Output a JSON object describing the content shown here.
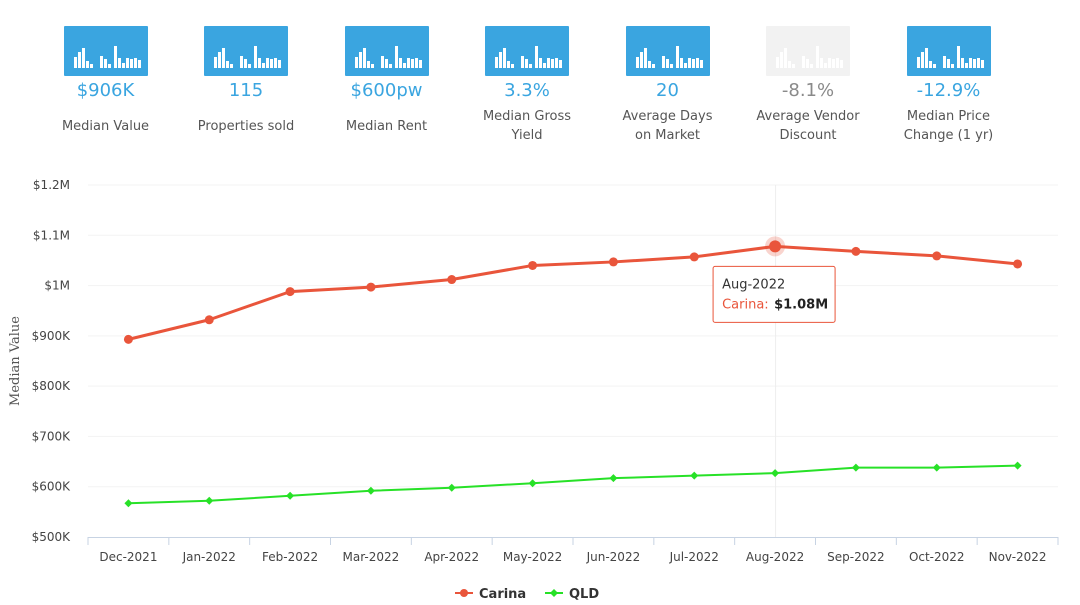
{
  "stats": [
    {
      "value": "$906K",
      "label": "Median Value",
      "muted": false
    },
    {
      "value": "115",
      "label": "Properties sold",
      "muted": false
    },
    {
      "value": "$600pw",
      "label": "Median Rent",
      "muted": false
    },
    {
      "value": "3.3%",
      "label": "Median Gross Yield",
      "muted": false
    },
    {
      "value": "20",
      "label": "Average Days on Market",
      "muted": false
    },
    {
      "value": "-8.1%",
      "label": "Average Vendor Discount",
      "muted": true
    },
    {
      "value": "-12.9%",
      "label": "Median Price Change (1 yr)",
      "muted": false
    }
  ],
  "colors": {
    "accent": "#3aa5e0",
    "carina": "#e9553b",
    "qld": "#27e127"
  },
  "chart_data": {
    "type": "line",
    "title": "",
    "xlabel": "",
    "ylabel": "Median Value",
    "categories": [
      "Dec-2021",
      "Jan-2022",
      "Feb-2022",
      "Mar-2022",
      "Apr-2022",
      "May-2022",
      "Jun-2022",
      "Jul-2022",
      "Aug-2022",
      "Sep-2022",
      "Oct-2022",
      "Nov-2022"
    ],
    "ylim": [
      500000,
      1200000
    ],
    "y_ticks": [
      500000,
      600000,
      700000,
      800000,
      900000,
      1000000,
      1100000,
      1200000
    ],
    "y_tick_labels": [
      "$500K",
      "$600K",
      "$700K",
      "$800K",
      "$900K",
      "$1M",
      "$1.1M",
      "$1.2M"
    ],
    "series": [
      {
        "name": "Carina",
        "values": [
          893000,
          932000,
          988000,
          997000,
          1012000,
          1040000,
          1047000,
          1057000,
          1078000,
          1068000,
          1059000,
          1043000
        ]
      },
      {
        "name": "QLD",
        "values": [
          567000,
          572000,
          582000,
          592000,
          598000,
          607000,
          617000,
          622000,
          627000,
          638000,
          638000,
          642000
        ]
      }
    ],
    "tooltip": {
      "category": "Aug-2022",
      "series": "Carina",
      "series_label": "Carina:",
      "value_label": "$1.08M"
    },
    "legend": {
      "position": "bottom-center"
    }
  }
}
